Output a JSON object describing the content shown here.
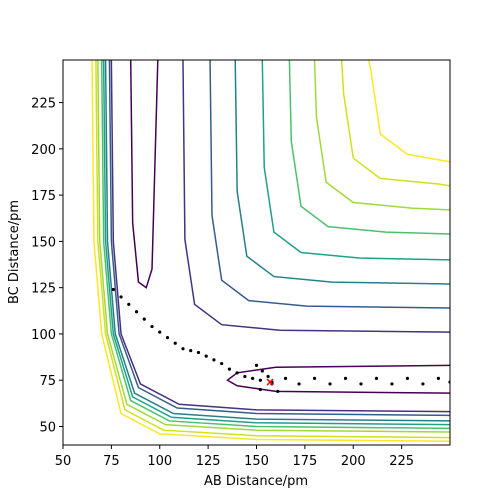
{
  "chart_data": {
    "type": "contour",
    "x_label": "AB Distance/pm",
    "y_label": "BC Distance/pm",
    "xlim": [
      50,
      250
    ],
    "ylim": [
      40,
      248
    ],
    "xticks": [
      50,
      75,
      100,
      125,
      150,
      175,
      200,
      225
    ],
    "yticks": [
      50,
      75,
      100,
      125,
      150,
      175,
      200,
      225
    ],
    "contours": [
      {
        "color": "#440154",
        "lines": [
          {
            "x": [
              85,
              86,
              89,
              93,
              96,
              99
            ],
            "y": [
              248,
              160,
              128,
              125,
              135,
              248
            ]
          },
          {
            "x": [
              250,
              160,
              140,
              135,
              140,
              160,
              250
            ],
            "y": [
              68,
              69,
              72,
              75,
              79,
              82,
              83
            ]
          }
        ]
      },
      {
        "color": "#46327e",
        "lines": [
          {
            "x": [
              75,
              76,
              80,
              90,
              110,
              150,
              250
            ],
            "y": [
              248,
              150,
              100,
              73,
              62,
              59,
              58
            ]
          },
          {
            "x": [
              112,
              113,
              118,
              132,
              162,
              250
            ],
            "y": [
              248,
              151,
              116,
              105,
              102,
              101
            ]
          }
        ]
      },
      {
        "color": "#365c8d",
        "lines": [
          {
            "x": [
              74,
              75,
              79,
              89,
              109,
              150,
              250
            ],
            "y": [
              248,
              150,
              100,
              71,
              60,
              57,
              56
            ]
          },
          {
            "x": [
              126,
              127,
              132,
              146,
              176,
              250
            ],
            "y": [
              248,
              164,
              129,
              118,
              115,
              114
            ]
          }
        ]
      },
      {
        "color": "#277f8e",
        "lines": [
          {
            "x": [
              72,
              73,
              77,
              87,
              107,
              150,
              250
            ],
            "y": [
              248,
              150,
              100,
              68,
              57,
              54,
              53
            ]
          },
          {
            "x": [
              139,
              140,
              145,
              159,
              189,
              250
            ],
            "y": [
              248,
              177,
              142,
              131,
              128,
              127
            ]
          }
        ]
      },
      {
        "color": "#1fa187",
        "lines": [
          {
            "x": [
              71,
              72,
              76,
              86,
              106,
              150,
              250
            ],
            "y": [
              248,
              150,
              100,
              66,
              55,
              52,
              51
            ]
          },
          {
            "x": [
              153,
              154,
              159,
              173,
              203,
              250
            ],
            "y": [
              248,
              190,
              155,
              144,
              141,
              140
            ]
          }
        ]
      },
      {
        "color": "#4ac16d",
        "lines": [
          {
            "x": [
              70,
              71,
              75,
              85,
              105,
              150,
              250
            ],
            "y": [
              248,
              150,
              100,
              64,
              53,
              50,
              49
            ]
          },
          {
            "x": [
              167,
              168,
              173,
              187,
              217,
              250
            ],
            "y": [
              248,
              204,
              169,
              158,
              155,
              154
            ]
          }
        ]
      },
      {
        "color": "#a0da39",
        "lines": [
          {
            "x": [
              68,
              69,
              73,
              83,
              103,
              150,
              250
            ],
            "y": [
              248,
              150,
              100,
              62,
              51,
              48,
              47
            ]
          },
          {
            "x": [
              180,
              181,
              186,
              200,
              230,
              250
            ],
            "y": [
              248,
              217,
              182,
              171,
              168,
              167
            ]
          }
        ]
      },
      {
        "color": "#d0e11c",
        "lines": [
          {
            "x": [
              67,
              68,
              72,
              82,
              102,
              150,
              250
            ],
            "y": [
              248,
              150,
              100,
              59,
              48,
              45,
              44
            ]
          },
          {
            "x": [
              194,
              195,
              200,
              214,
              244,
              250
            ],
            "y": [
              248,
              230,
              195,
              184,
              181,
              180
            ]
          }
        ]
      },
      {
        "color": "#fde725",
        "lines": [
          {
            "x": [
              65,
              66,
              70,
              80,
              100,
              150,
              250
            ],
            "y": [
              248,
              150,
              100,
              57,
              46,
              43,
              42
            ]
          },
          {
            "x": [
              208,
              209,
              214,
              228,
              250
            ],
            "y": [
              248,
              243,
              208,
              197,
              193
            ]
          }
        ]
      }
    ],
    "trajectory": {
      "color": "#000000",
      "x": [
        76,
        80,
        84,
        88,
        92,
        96,
        100,
        104,
        108,
        112,
        116,
        120,
        124,
        128,
        132,
        136,
        140,
        144,
        148,
        152,
        150,
        153,
        158,
        161,
        156,
        152,
        158,
        165,
        172,
        180,
        188,
        196,
        204,
        212,
        220,
        228,
        236,
        244,
        250
      ],
      "y": [
        124,
        120,
        116,
        112,
        108,
        104,
        101,
        98,
        95,
        92,
        91,
        90,
        88,
        86,
        84,
        81,
        79,
        77,
        76,
        75,
        83,
        80,
        74,
        69,
        77,
        70,
        73,
        76,
        73,
        76,
        73,
        76,
        73,
        76,
        73,
        76,
        73,
        76,
        74
      ]
    },
    "marker": {
      "x": 157,
      "y": 74,
      "color": "#ff0000"
    }
  }
}
